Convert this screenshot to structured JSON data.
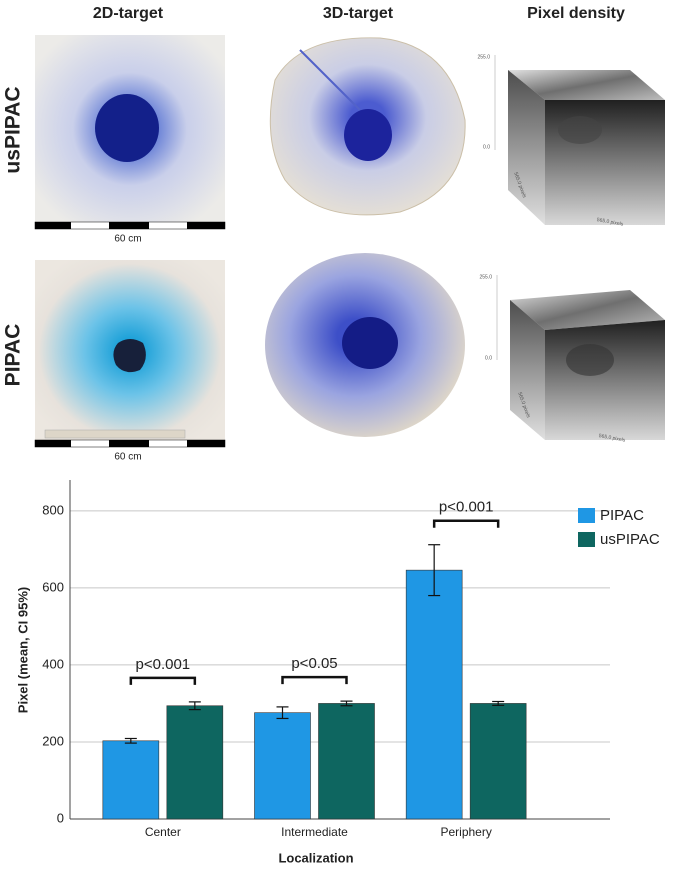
{
  "panels": {
    "columns": [
      "2D-target",
      "3D-target",
      "Pixel density"
    ],
    "rows": [
      "usPIPAC",
      "PIPAC"
    ],
    "scale_labels": [
      "60 cm",
      "60 cm"
    ],
    "density_labels": [
      {
        "z_max": "255.0",
        "z_min": "0.0",
        "x_axis": "565.0 pixels",
        "y_axis": "565.0 pixels"
      },
      {
        "z_max": "255.0",
        "z_min": "0.0",
        "x_axis": "565.0 pixels",
        "y_axis": "565.0 pixels"
      }
    ]
  },
  "chart_data": {
    "type": "bar",
    "x_label": "Localization",
    "y_label": "Pixel (mean, CI 95%)",
    "categories": [
      "Center",
      "Intermediate",
      "Periphery"
    ],
    "series": [
      {
        "name": "PIPAC",
        "color": "#1f97e4",
        "values": [
          203,
          276,
          646
        ],
        "errors": [
          6,
          15,
          66
        ]
      },
      {
        "name": "usPIPAC",
        "color": "#0e6660",
        "values": [
          294,
          300,
          300
        ],
        "errors": [
          10,
          6,
          5
        ]
      }
    ],
    "annotations": [
      "p<0.001",
      "p<0.05",
      "p<0.001"
    ],
    "ylim": [
      0,
      880
    ],
    "yticks": [
      0,
      200,
      400,
      600,
      800
    ],
    "grid": true,
    "legend": "right"
  }
}
